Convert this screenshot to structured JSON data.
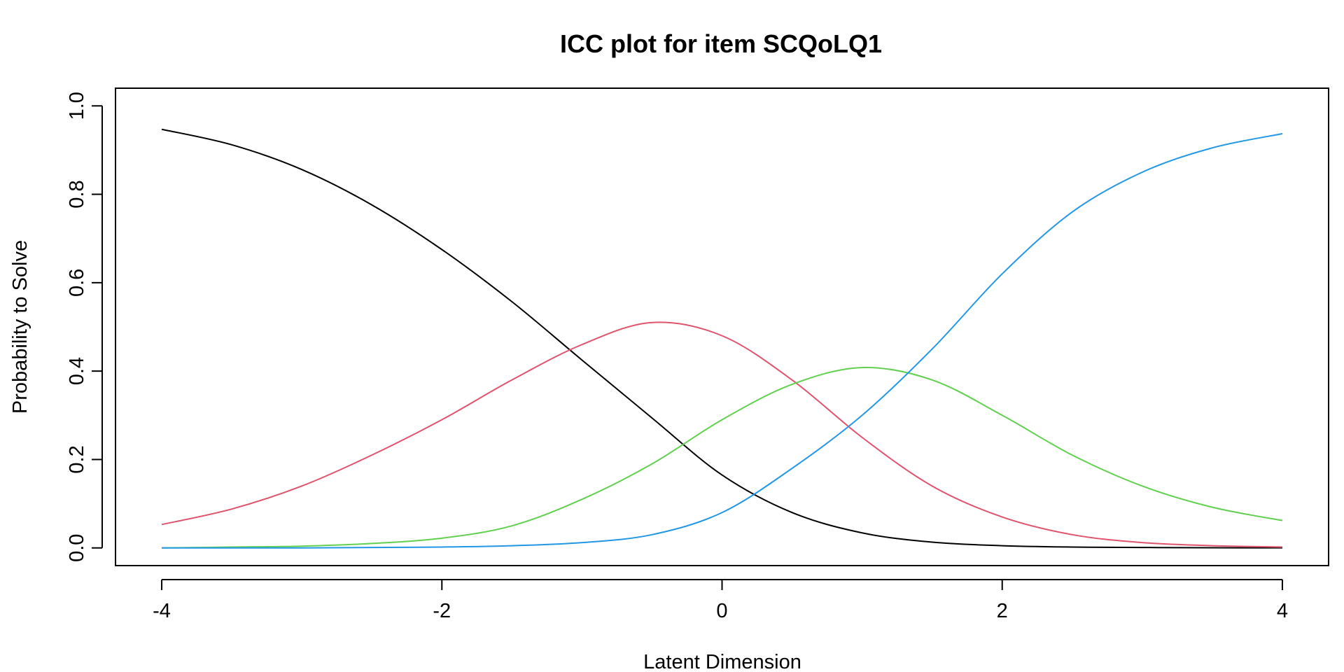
{
  "chart_data": {
    "type": "line",
    "title": "ICC plot for item SCQoLQ1",
    "xlabel": "Latent Dimension",
    "ylabel": "Probability to Solve",
    "xlim": [
      -4.33,
      4.33
    ],
    "ylim": [
      -0.04,
      1.04
    ],
    "x_ticks": [
      -4,
      -2,
      0,
      2,
      4
    ],
    "x_tick_labels": [
      "-4",
      "-2",
      "0",
      "2",
      "4"
    ],
    "y_ticks": [
      0.0,
      0.2,
      0.4,
      0.6,
      0.8,
      1.0
    ],
    "y_tick_labels": [
      "0.0",
      "0.2",
      "0.4",
      "0.6",
      "0.8",
      "1.0"
    ],
    "grid": false,
    "legend": "none",
    "x": [
      -4,
      -3.5,
      -3,
      -2.5,
      -2,
      -1.5,
      -1,
      -0.5,
      0,
      0.5,
      1,
      1.5,
      2,
      2.5,
      3,
      3.5,
      4
    ],
    "series": [
      {
        "color": "#000000",
        "values": [
          0.947,
          0.912,
          0.856,
          0.776,
          0.675,
          0.557,
          0.425,
          0.294,
          0.165,
          0.08,
          0.034,
          0.013,
          0.005,
          0.002,
          0.001,
          0.0003,
          0.0001
        ]
      },
      {
        "color": "#DF536B",
        "values": [
          0.053,
          0.088,
          0.14,
          0.21,
          0.29,
          0.38,
          0.46,
          0.51,
          0.48,
          0.38,
          0.25,
          0.14,
          0.07,
          0.03,
          0.012,
          0.005,
          0.002
        ]
      },
      {
        "color": "#61D04F",
        "values": [
          0.0,
          0.002,
          0.004,
          0.01,
          0.022,
          0.05,
          0.11,
          0.19,
          0.29,
          0.37,
          0.408,
          0.38,
          0.3,
          0.21,
          0.14,
          0.092,
          0.062
        ]
      },
      {
        "color": "#2297E6",
        "values": [
          0.0,
          0.0,
          0.0,
          0.001,
          0.002,
          0.005,
          0.012,
          0.03,
          0.08,
          0.18,
          0.3,
          0.45,
          0.62,
          0.76,
          0.85,
          0.905,
          0.937
        ]
      }
    ]
  }
}
